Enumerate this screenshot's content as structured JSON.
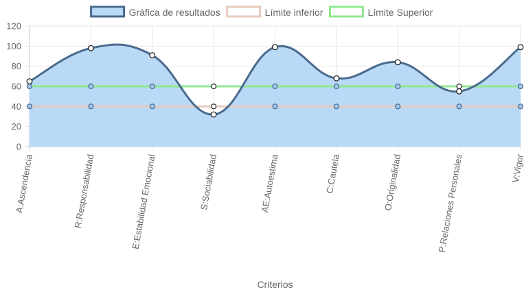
{
  "chart_data": {
    "type": "line",
    "categories": [
      "A:Ascendencia",
      "R:Responsabilidad",
      "E:Estabilidad Emocional",
      "S:Sociabilidad",
      "AE:Autoestima",
      "C:Cautela",
      "O:Originalidad",
      "P:Relaciones Personales",
      "V:Vigor"
    ],
    "series": [
      {
        "name": "Gráfica de resultados",
        "values": [
          65,
          98,
          91,
          32,
          99,
          68,
          84,
          55,
          99
        ],
        "stroke": "#4a6a8c",
        "fill": "#b9d9f7"
      },
      {
        "name": "Límite inferior",
        "values": [
          40,
          40,
          40,
          40,
          40,
          40,
          40,
          40,
          40
        ],
        "stroke": "#e6cbbd",
        "fill": "#ffffff"
      },
      {
        "name": "Límite Superior",
        "values": [
          60,
          60,
          60,
          60,
          60,
          60,
          60,
          60,
          60
        ],
        "stroke": "#90e890",
        "fill": "#ffffff"
      }
    ],
    "xlabel": "Criterios",
    "ylabel": "",
    "ylim": [
      0,
      120
    ],
    "yticks": [
      "0",
      "20",
      "40",
      "60",
      "80",
      "100",
      "120"
    ],
    "grid": true,
    "legend_position": "top"
  }
}
